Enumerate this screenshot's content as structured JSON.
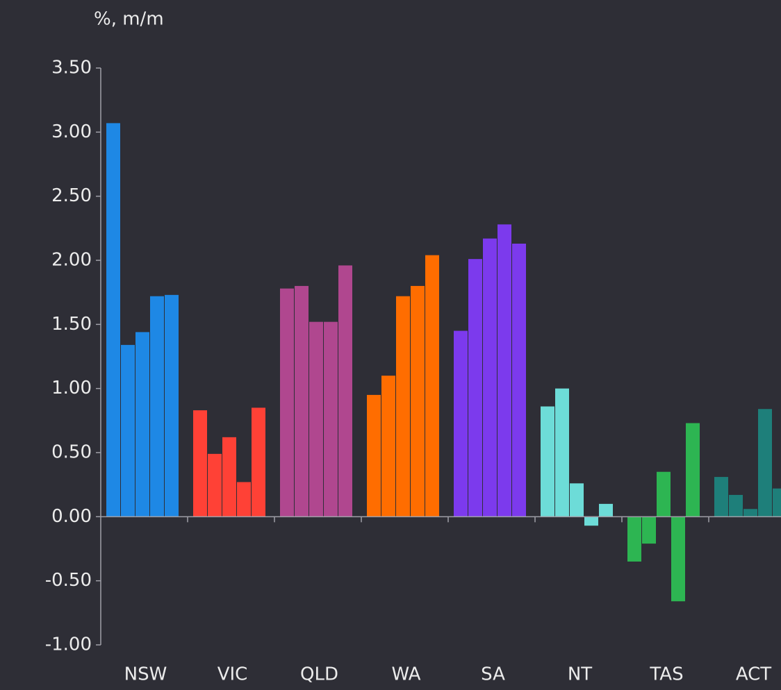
{
  "chart_data": {
    "type": "grouped_bar",
    "y_axis_label": "%, m/m",
    "categories": [
      "NSW",
      "VIC",
      "QLD",
      "WA",
      "SA",
      "NT",
      "TAS",
      "ACT"
    ],
    "values": [
      [
        3.07,
        1.34,
        1.44,
        1.72,
        1.73
      ],
      [
        0.83,
        0.49,
        0.62,
        0.27,
        0.85
      ],
      [
        1.78,
        1.8,
        1.52,
        1.52,
        1.96
      ],
      [
        0.95,
        1.1,
        1.72,
        1.8,
        2.04
      ],
      [
        1.45,
        2.01,
        2.17,
        2.28,
        2.13
      ],
      [
        0.86,
        1.0,
        0.26,
        -0.07,
        0.1
      ],
      [
        -0.35,
        -0.21,
        0.35,
        -0.66,
        0.73
      ],
      [
        0.31,
        0.17,
        0.06,
        0.84,
        0.22
      ]
    ],
    "colors": [
      "#1e88e5",
      "#ff4136",
      "#b0478f",
      "#ff6d00",
      "#7c3aed",
      "#6ddcd8",
      "#2db552",
      "#1e7f7a"
    ],
    "ylim": [
      -1,
      3.5
    ],
    "yticks": [
      {
        "value": -1,
        "label": "-1.00"
      },
      {
        "value": -0.5,
        "label": "-0.50"
      },
      {
        "value": 0,
        "label": "0.00"
      },
      {
        "value": 0.5,
        "label": "0.50"
      },
      {
        "value": 1,
        "label": "1.00"
      },
      {
        "value": 1.5,
        "label": "1.50"
      },
      {
        "value": 2,
        "label": "2.00"
      },
      {
        "value": 2.5,
        "label": "2.50"
      },
      {
        "value": 3,
        "label": "3.00"
      },
      {
        "value": 3.5,
        "label": "3.50"
      }
    ],
    "grid": false
  }
}
